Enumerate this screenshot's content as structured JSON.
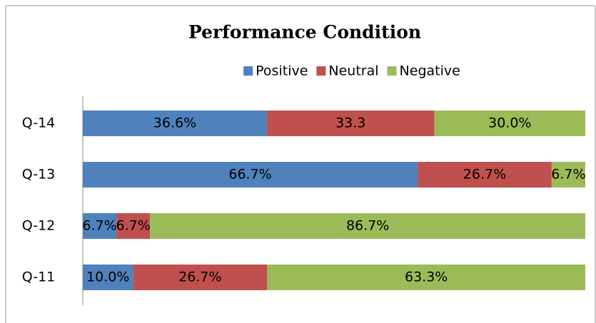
{
  "chart_data": {
    "type": "bar",
    "orientation": "horizontal",
    "stacked": true,
    "title": "Performance Condition",
    "categories": [
      "Q-11",
      "Q-12",
      "Q-13",
      "Q-14"
    ],
    "series": [
      {
        "name": "Positive",
        "color": "#4f81bd",
        "values": [
          10.0,
          6.7,
          66.7,
          36.6
        ],
        "value_labels": [
          "10.0%",
          "6.7%",
          "66.7%",
          "36.6%"
        ]
      },
      {
        "name": "Neutral",
        "color": "#c0504d",
        "values": [
          26.7,
          6.7,
          26.7,
          33.3
        ],
        "value_labels": [
          "26.7%",
          "6.7%",
          "26.7%",
          "33.3"
        ]
      },
      {
        "name": "Negative",
        "color": "#9bbb59",
        "values": [
          63.3,
          86.7,
          6.7,
          30.0
        ],
        "value_labels": [
          "63.3%",
          "86.7%",
          "6.7%",
          "30.0%"
        ]
      }
    ],
    "legend": "top"
  }
}
